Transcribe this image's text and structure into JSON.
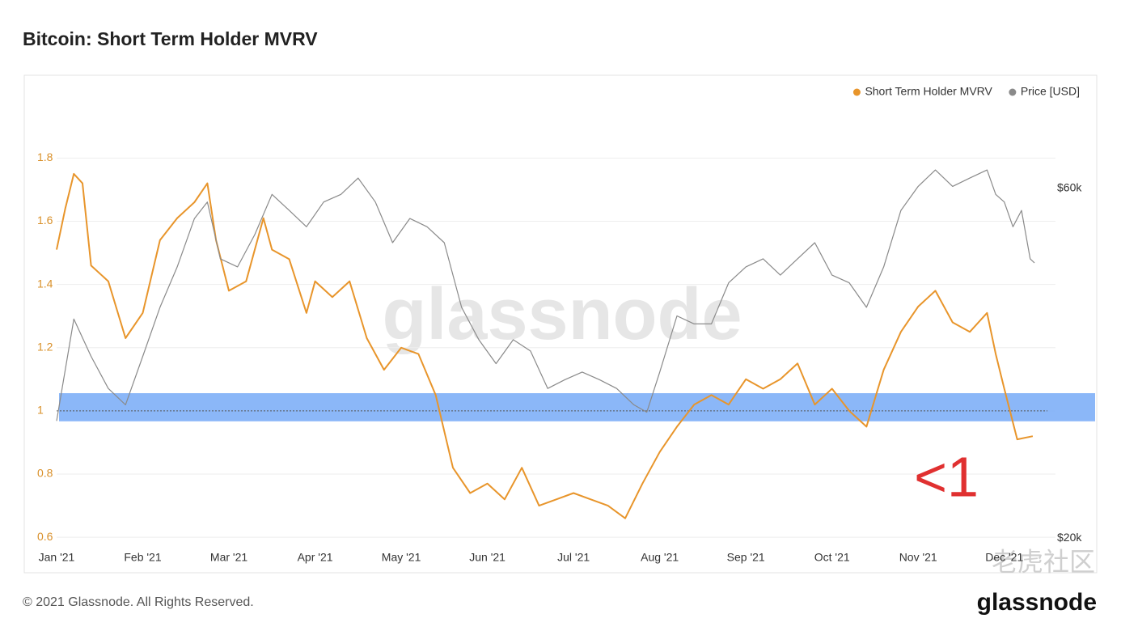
{
  "chart_data": {
    "type": "line",
    "title": "Bitcoin: Short Term Holder MVRV",
    "footer": "© 2021 Glassnode. All Rights Reserved.",
    "watermark": "glassnode",
    "brand": "glassnode",
    "community_watermark": "老虎社区",
    "annotation": "<1",
    "band": [
      0.967,
      1.056
    ],
    "band_color": "#77aaf7",
    "reference_line": 1,
    "xlim": [
      0,
      11.5
    ],
    "xticks": [
      {
        "value": 0,
        "label": "Jan '21"
      },
      {
        "value": 1,
        "label": "Feb '21"
      },
      {
        "value": 2,
        "label": "Mar '21"
      },
      {
        "value": 3,
        "label": "Apr '21"
      },
      {
        "value": 4,
        "label": "May '21"
      },
      {
        "value": 5,
        "label": "Jun '21"
      },
      {
        "value": 6,
        "label": "Jul '21"
      },
      {
        "value": 7,
        "label": "Aug '21"
      },
      {
        "value": 8,
        "label": "Sep '21"
      },
      {
        "value": 9,
        "label": "Oct '21"
      },
      {
        "value": 10,
        "label": "Nov '21"
      },
      {
        "value": 11,
        "label": "Dec '21"
      }
    ],
    "ylim": [
      0.58,
      1.98
    ],
    "yticks": [
      0.6,
      0.8,
      1,
      1.2,
      1.4,
      1.6,
      1.8
    ],
    "y2lim": [
      19650,
      78960
    ],
    "y2log": true,
    "y2ticks": [
      {
        "value": 20000,
        "label": "$20k"
      },
      {
        "value": 60000,
        "label": "$60k"
      }
    ],
    "grid": true,
    "legend": "top-right",
    "series": [
      {
        "name": "Short Term Holder MVRV",
        "color": "#e8952b",
        "axis": "y",
        "x": [
          0,
          0.1,
          0.2,
          0.3,
          0.4,
          0.6,
          0.8,
          1.0,
          1.2,
          1.4,
          1.6,
          1.75,
          1.85,
          2.0,
          2.2,
          2.4,
          2.5,
          2.7,
          2.9,
          3.0,
          3.2,
          3.4,
          3.6,
          3.8,
          4.0,
          4.2,
          4.4,
          4.6,
          4.8,
          5.0,
          5.2,
          5.4,
          5.6,
          5.8,
          6.0,
          6.2,
          6.4,
          6.6,
          6.8,
          7.0,
          7.2,
          7.4,
          7.6,
          7.8,
          8.0,
          8.2,
          8.4,
          8.6,
          8.8,
          9.0,
          9.2,
          9.4,
          9.6,
          9.8,
          10.0,
          10.2,
          10.4,
          10.6,
          10.8,
          10.9,
          11.0,
          11.15,
          11.33
        ],
        "values": [
          1.51,
          1.64,
          1.75,
          1.72,
          1.46,
          1.41,
          1.23,
          1.31,
          1.54,
          1.61,
          1.66,
          1.72,
          1.54,
          1.38,
          1.41,
          1.61,
          1.51,
          1.48,
          1.31,
          1.41,
          1.36,
          1.41,
          1.23,
          1.13,
          1.2,
          1.18,
          1.05,
          0.82,
          0.74,
          0.77,
          0.72,
          0.82,
          0.7,
          0.72,
          0.74,
          0.72,
          0.7,
          0.66,
          0.77,
          0.87,
          0.95,
          1.02,
          1.05,
          1.02,
          1.1,
          1.07,
          1.1,
          1.15,
          1.02,
          1.07,
          1.0,
          0.95,
          1.13,
          1.25,
          1.33,
          1.38,
          1.28,
          1.25,
          1.31,
          1.18,
          1.07,
          0.91,
          0.92
        ]
      },
      {
        "name": "Price [USD]",
        "color": "#8a8a8a",
        "axis": "y2",
        "x": [
          0,
          0.2,
          0.4,
          0.6,
          0.8,
          1.0,
          1.2,
          1.4,
          1.6,
          1.75,
          1.9,
          2.1,
          2.3,
          2.5,
          2.7,
          2.9,
          3.1,
          3.3,
          3.5,
          3.7,
          3.9,
          4.1,
          4.3,
          4.5,
          4.7,
          4.9,
          5.1,
          5.3,
          5.5,
          5.7,
          5.9,
          6.1,
          6.3,
          6.5,
          6.7,
          6.85,
          7.0,
          7.2,
          7.4,
          7.6,
          7.8,
          8.0,
          8.2,
          8.4,
          8.6,
          8.8,
          9.0,
          9.2,
          9.4,
          9.6,
          9.8,
          10.0,
          10.2,
          10.4,
          10.6,
          10.8,
          10.9,
          11.0,
          11.1,
          11.2,
          11.3,
          11.35
        ],
        "values": [
          28900,
          39800,
          35400,
          32000,
          30400,
          35400,
          41300,
          46900,
          54600,
          57500,
          48100,
          46900,
          51900,
          58900,
          56000,
          53200,
          57500,
          58900,
          62000,
          57500,
          50600,
          54600,
          53200,
          50600,
          41300,
          37300,
          34600,
          37300,
          36000,
          32000,
          32900,
          33700,
          32900,
          32000,
          30400,
          29700,
          33700,
          40200,
          39200,
          39200,
          44600,
          46900,
          48100,
          45700,
          48100,
          50600,
          45700,
          44600,
          41300,
          46900,
          56000,
          60400,
          63600,
          60400,
          62000,
          63600,
          58900,
          57500,
          53200,
          56000,
          48100,
          47500
        ]
      }
    ]
  }
}
